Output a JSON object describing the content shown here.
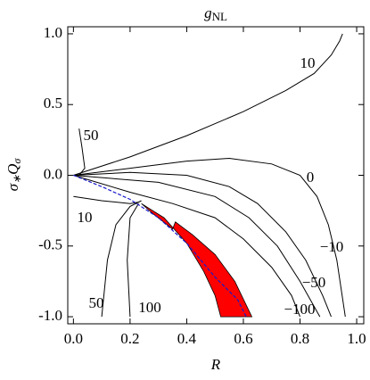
{
  "chart_data": {
    "type": "contour",
    "title": {
      "main": "g",
      "subscript": "NL"
    },
    "xlabel": "R",
    "ylabel": {
      "main": "σ",
      "sub1": "∗",
      "mid": "Q",
      "sub2": "σ"
    },
    "xlim": [
      -0.02,
      1.025
    ],
    "ylim": [
      -1.05,
      1.05
    ],
    "xticks": [
      {
        "value": 0,
        "label": "0.0"
      },
      {
        "value": 0.2,
        "label": "0.2"
      },
      {
        "value": 0.4,
        "label": "0.4"
      },
      {
        "value": 0.6,
        "label": "0.6"
      },
      {
        "value": 0.8,
        "label": "0.8"
      },
      {
        "value": 1,
        "label": "1.0"
      }
    ],
    "yticks": [
      {
        "value": -1,
        "label": "-1.0"
      },
      {
        "value": -0.5,
        "label": "-0.5"
      },
      {
        "value": 0,
        "label": "0.0"
      },
      {
        "value": 0.5,
        "label": "0.5"
      },
      {
        "value": 1,
        "label": "1.0"
      }
    ],
    "series": [
      {
        "name": "10",
        "color": "#000000",
        "x": [
          0,
          0.2,
          0.4,
          0.6,
          0.75,
          0.85,
          0.91,
          0.94,
          0.95
        ],
        "values": [
          0,
          0.13,
          0.28,
          0.45,
          0.6,
          0.72,
          0.85,
          0.95,
          1.0
        ]
      },
      {
        "name": "0",
        "color": "#000000",
        "x": [
          0,
          0.2,
          0.4,
          0.55,
          0.7,
          0.8,
          0.86,
          0.9,
          0.93,
          0.96
        ],
        "values": [
          0,
          0.05,
          0.1,
          0.12,
          0.08,
          0.0,
          -0.15,
          -0.35,
          -0.6,
          -1.0
        ]
      },
      {
        "name": "−10",
        "color": "#000000",
        "x": [
          0,
          0.2,
          0.4,
          0.55,
          0.65,
          0.75,
          0.82,
          0.88,
          0.91
        ],
        "values": [
          0,
          0.02,
          0.0,
          -0.08,
          -0.2,
          -0.4,
          -0.6,
          -0.85,
          -1.0
        ]
      },
      {
        "name": "−50",
        "color": "#000000",
        "x": [
          0,
          0.3,
          0.5,
          0.62,
          0.72,
          0.8,
          0.87
        ],
        "values": [
          0,
          -0.05,
          -0.15,
          -0.3,
          -0.5,
          -0.75,
          -1.0
        ]
      },
      {
        "name": "−100",
        "color": "#000000",
        "x": [
          0,
          0.2,
          0.35,
          0.5,
          0.6,
          0.7,
          0.77,
          0.8
        ],
        "values": [
          0,
          -0.12,
          -0.2,
          -0.3,
          -0.45,
          -0.65,
          -0.85,
          -1.0
        ]
      },
      {
        "name": "50",
        "color": "#000000",
        "x": [
          0.02,
          0.03,
          0.04,
          0.02
        ],
        "values": [
          0.33,
          0.2,
          0.05,
          0.0
        ]
      },
      {
        "name": "50",
        "color": "#000000",
        "x": [
          0.1,
          0.12,
          0.15,
          0.2,
          0.24
        ],
        "values": [
          -1.0,
          -0.6,
          -0.35,
          -0.22,
          -0.18
        ]
      },
      {
        "name": "100",
        "color": "#000000",
        "x": [
          0.2,
          0.19,
          0.2,
          0.23
        ],
        "values": [
          -1.0,
          -0.6,
          -0.3,
          -0.2
        ]
      },
      {
        "name": "10",
        "color": "#000000",
        "x": [
          0,
          0.1,
          0.2,
          0.23
        ],
        "values": [
          -0.15,
          -0.18,
          -0.2,
          -0.19
        ]
      }
    ],
    "dashed_line": {
      "color": "#1a1acc",
      "x": [
        0,
        0.1,
        0.2,
        0.3,
        0.4,
        0.5,
        0.58,
        0.61
      ],
      "values": [
        0,
        -0.08,
        -0.17,
        -0.3,
        -0.48,
        -0.72,
        -0.88,
        -1.0
      ]
    },
    "region": {
      "color": "#ff0000",
      "x": [
        0.24,
        0.32,
        0.4,
        0.46,
        0.5,
        0.52,
        0.63,
        0.57,
        0.5,
        0.42,
        0.36,
        0.35,
        0.28
      ],
      "values": [
        -0.2,
        -0.3,
        -0.48,
        -0.68,
        -0.85,
        -1.0,
        -1.0,
        -0.75,
        -0.56,
        -0.42,
        -0.33,
        -0.38,
        -0.27
      ]
    }
  }
}
